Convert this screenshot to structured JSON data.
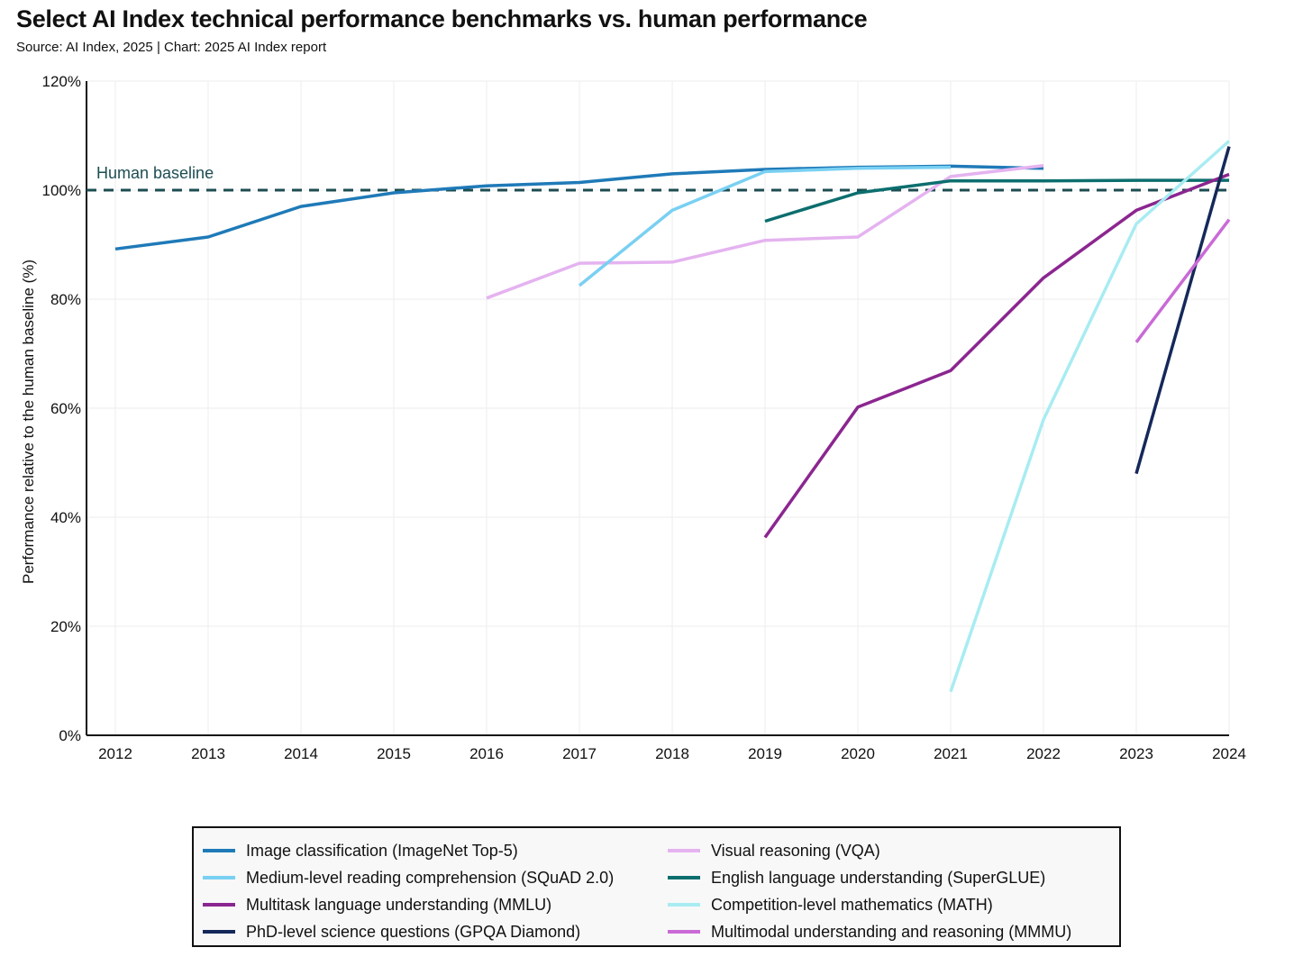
{
  "title": "Select AI Index technical performance benchmarks vs. human performance",
  "subtitle": "Source: AI Index, 2025 | Chart: 2025 AI Index report",
  "chart_data": {
    "type": "line",
    "title": "Select AI Index technical performance benchmarks vs. human performance",
    "subtitle": "Source: AI Index, 2025 | Chart: 2025 AI Index report",
    "xlabel": "",
    "ylabel": "Performance relative to the human baseline (%)",
    "x": [
      2012,
      2013,
      2014,
      2015,
      2016,
      2017,
      2018,
      2019,
      2020,
      2021,
      2022,
      2023,
      2024
    ],
    "x_tick_labels": [
      "2012",
      "2013",
      "2014",
      "2015",
      "2016",
      "2017",
      "2018",
      "2019",
      "2020",
      "2021",
      "2022",
      "2023",
      "2024"
    ],
    "ylim": [
      0,
      120
    ],
    "y_ticks": [
      0,
      20,
      40,
      60,
      80,
      100,
      120
    ],
    "y_tick_labels": [
      "0%",
      "20%",
      "40%",
      "60%",
      "80%",
      "100%",
      "120%"
    ],
    "grid": "vertical and horizontal light gridlines",
    "legend_placement": "bottom",
    "baseline": {
      "label": "Human baseline",
      "value": 100,
      "color": "#1d4d52"
    },
    "series": [
      {
        "name": "Image classification (ImageNet Top-5)",
        "color": "#1f7ab8",
        "points": [
          [
            2012,
            89.2
          ],
          [
            2013,
            91.4
          ],
          [
            2014,
            97.0
          ],
          [
            2015,
            99.5
          ],
          [
            2016,
            100.8
          ],
          [
            2017,
            101.4
          ],
          [
            2018,
            103.0
          ],
          [
            2019,
            103.8
          ],
          [
            2020,
            104.2
          ],
          [
            2021,
            104.4
          ],
          [
            2022,
            104.0
          ]
        ]
      },
      {
        "name": "Visual reasoning (VQA)",
        "color": "#e5b3f0",
        "points": [
          [
            2016,
            80.2
          ],
          [
            2017,
            86.6
          ],
          [
            2018,
            86.8
          ],
          [
            2019,
            90.8
          ],
          [
            2020,
            91.4
          ],
          [
            2021,
            102.5
          ],
          [
            2022,
            104.5
          ]
        ]
      },
      {
        "name": "Medium-level reading comprehension (SQuAD 2.0)",
        "color": "#79d0f2",
        "points": [
          [
            2017,
            82.5
          ],
          [
            2018,
            96.3
          ],
          [
            2019,
            103.4
          ],
          [
            2020,
            104.0
          ],
          [
            2021,
            104.2
          ]
        ]
      },
      {
        "name": "English language understanding (SuperGLUE)",
        "color": "#0c6e6e",
        "points": [
          [
            2019,
            94.3
          ],
          [
            2020,
            99.5
          ],
          [
            2021,
            101.7
          ],
          [
            2022,
            101.7
          ],
          [
            2023,
            101.8
          ],
          [
            2024,
            101.8
          ]
        ]
      },
      {
        "name": "Multitask language understanding (MMLU)",
        "color": "#8b2690",
        "points": [
          [
            2019,
            36.3
          ],
          [
            2020,
            60.2
          ],
          [
            2021,
            66.9
          ],
          [
            2022,
            83.9
          ],
          [
            2023,
            96.3
          ],
          [
            2024,
            102.9
          ]
        ]
      },
      {
        "name": "Competition-level mathematics (MATH)",
        "color": "#a8ecf2",
        "points": [
          [
            2021,
            8.0
          ],
          [
            2022,
            57.9
          ],
          [
            2023,
            93.8
          ],
          [
            2024,
            109.0
          ]
        ]
      },
      {
        "name": "PhD-level science questions (GPQA Diamond)",
        "color": "#15285a",
        "points": [
          [
            2023,
            48.0
          ],
          [
            2024,
            108.0
          ]
        ]
      },
      {
        "name": "Multimodal understanding and reasoning (MMMU)",
        "color": "#c96ad6",
        "points": [
          [
            2023,
            72.1
          ],
          [
            2024,
            94.6
          ]
        ]
      }
    ]
  },
  "legend": {
    "items": [
      {
        "label": "Image classification (ImageNet Top-5)",
        "color": "#1f7ab8"
      },
      {
        "label": "Visual reasoning (VQA)",
        "color": "#e5b3f0"
      },
      {
        "label": "Medium-level reading comprehension (SQuAD 2.0)",
        "color": "#79d0f2"
      },
      {
        "label": "English language understanding (SuperGLUE)",
        "color": "#0c6e6e"
      },
      {
        "label": "Multitask language understanding (MMLU)",
        "color": "#8b2690"
      },
      {
        "label": "Competition-level mathematics (MATH)",
        "color": "#a8ecf2"
      },
      {
        "label": "PhD-level science questions (GPQA Diamond)",
        "color": "#15285a"
      },
      {
        "label": "Multimodal understanding and reasoning (MMMU)",
        "color": "#c96ad6"
      }
    ]
  }
}
